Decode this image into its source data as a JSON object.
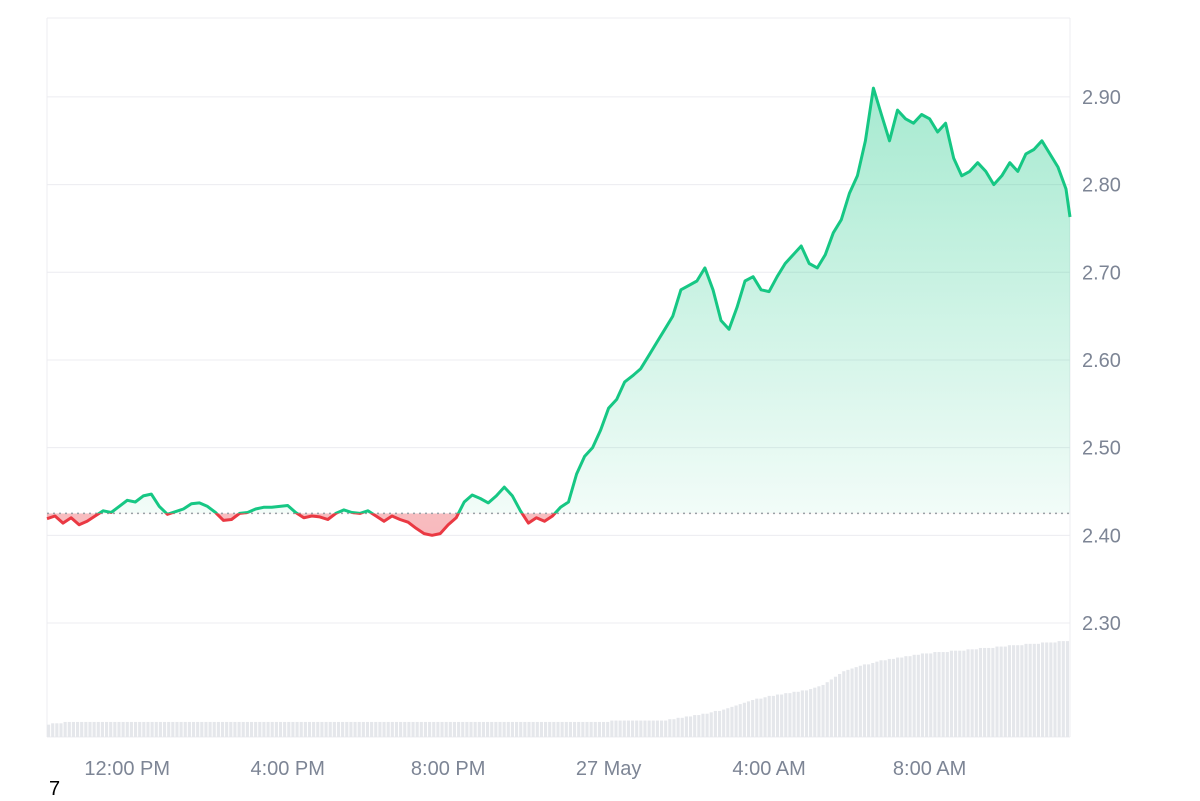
{
  "chart_data": {
    "type": "area",
    "baseline": 2.425,
    "y_ticks": [
      2.3,
      2.4,
      2.5,
      2.6,
      2.7,
      2.8,
      2.9
    ],
    "y_tick_labels": [
      "2.30",
      "2.40",
      "2.50",
      "2.60",
      "2.70",
      "2.80",
      "2.90"
    ],
    "ylim": [
      2.17,
      2.99
    ],
    "x_tick_labels": [
      "12:00 PM",
      "4:00 PM",
      "8:00 PM",
      "27 May",
      "4:00 AM",
      "8:00 AM"
    ],
    "x_tick_times": [
      2,
      6,
      10,
      14,
      18,
      22
    ],
    "xlim": [
      0,
      25.5
    ],
    "grid": true,
    "colors": {
      "up": "#16c784",
      "down": "#ea3943",
      "grid": "#ececf0",
      "volume": "#e5e7eb",
      "baseline": "#9aa0a6"
    },
    "series": [
      {
        "values": [
          [
            0.0,
            2.419
          ],
          [
            0.2,
            2.422
          ],
          [
            0.4,
            2.414
          ],
          [
            0.6,
            2.42
          ],
          [
            0.8,
            2.412
          ],
          [
            1.0,
            2.416
          ],
          [
            1.2,
            2.422
          ],
          [
            1.4,
            2.428
          ],
          [
            1.6,
            2.426
          ],
          [
            1.8,
            2.433
          ],
          [
            2.0,
            2.44
          ],
          [
            2.2,
            2.438
          ],
          [
            2.4,
            2.445
          ],
          [
            2.6,
            2.447
          ],
          [
            2.8,
            2.433
          ],
          [
            3.0,
            2.424
          ],
          [
            3.2,
            2.427
          ],
          [
            3.4,
            2.43
          ],
          [
            3.6,
            2.436
          ],
          [
            3.8,
            2.437
          ],
          [
            4.0,
            2.433
          ],
          [
            4.2,
            2.426
          ],
          [
            4.4,
            2.417
          ],
          [
            4.6,
            2.418
          ],
          [
            4.8,
            2.425
          ],
          [
            5.0,
            2.426
          ],
          [
            5.2,
            2.43
          ],
          [
            5.4,
            2.432
          ],
          [
            5.6,
            2.432
          ],
          [
            5.8,
            2.433
          ],
          [
            6.0,
            2.434
          ],
          [
            6.2,
            2.426
          ],
          [
            6.4,
            2.42
          ],
          [
            6.6,
            2.422
          ],
          [
            6.8,
            2.421
          ],
          [
            7.0,
            2.418
          ],
          [
            7.2,
            2.425
          ],
          [
            7.4,
            2.429
          ],
          [
            7.6,
            2.426
          ],
          [
            7.8,
            2.425
          ],
          [
            8.0,
            2.428
          ],
          [
            8.2,
            2.422
          ],
          [
            8.4,
            2.416
          ],
          [
            8.6,
            2.422
          ],
          [
            8.8,
            2.418
          ],
          [
            9.0,
            2.415
          ],
          [
            9.2,
            2.408
          ],
          [
            9.4,
            2.402
          ],
          [
            9.6,
            2.4
          ],
          [
            9.8,
            2.402
          ],
          [
            10.0,
            2.412
          ],
          [
            10.2,
            2.42
          ],
          [
            10.4,
            2.438
          ],
          [
            10.6,
            2.446
          ],
          [
            10.8,
            2.442
          ],
          [
            11.0,
            2.437
          ],
          [
            11.2,
            2.445
          ],
          [
            11.4,
            2.455
          ],
          [
            11.6,
            2.445
          ],
          [
            11.8,
            2.428
          ],
          [
            12.0,
            2.414
          ],
          [
            12.2,
            2.42
          ],
          [
            12.4,
            2.416
          ],
          [
            12.6,
            2.422
          ],
          [
            12.8,
            2.432
          ],
          [
            13.0,
            2.438
          ],
          [
            13.2,
            2.47
          ],
          [
            13.4,
            2.49
          ],
          [
            13.6,
            2.5
          ],
          [
            13.8,
            2.52
          ],
          [
            14.0,
            2.545
          ],
          [
            14.2,
            2.555
          ],
          [
            14.4,
            2.575
          ],
          [
            14.6,
            2.582
          ],
          [
            14.8,
            2.59
          ],
          [
            15.0,
            2.605
          ],
          [
            15.2,
            2.62
          ],
          [
            15.4,
            2.635
          ],
          [
            15.6,
            2.65
          ],
          [
            15.8,
            2.68
          ],
          [
            16.0,
            2.685
          ],
          [
            16.2,
            2.69
          ],
          [
            16.4,
            2.705
          ],
          [
            16.6,
            2.68
          ],
          [
            16.8,
            2.645
          ],
          [
            17.0,
            2.635
          ],
          [
            17.2,
            2.66
          ],
          [
            17.4,
            2.69
          ],
          [
            17.6,
            2.695
          ],
          [
            17.8,
            2.68
          ],
          [
            18.0,
            2.678
          ],
          [
            18.2,
            2.695
          ],
          [
            18.4,
            2.71
          ],
          [
            18.6,
            2.72
          ],
          [
            18.8,
            2.73
          ],
          [
            19.0,
            2.71
          ],
          [
            19.2,
            2.705
          ],
          [
            19.4,
            2.72
          ],
          [
            19.6,
            2.745
          ],
          [
            19.8,
            2.76
          ],
          [
            20.0,
            2.79
          ],
          [
            20.2,
            2.81
          ],
          [
            20.4,
            2.85
          ],
          [
            20.6,
            2.91
          ],
          [
            20.8,
            2.88
          ],
          [
            21.0,
            2.85
          ],
          [
            21.2,
            2.885
          ],
          [
            21.4,
            2.875
          ],
          [
            21.6,
            2.87
          ],
          [
            21.8,
            2.88
          ],
          [
            22.0,
            2.875
          ],
          [
            22.2,
            2.86
          ],
          [
            22.4,
            2.87
          ],
          [
            22.6,
            2.83
          ],
          [
            22.8,
            2.81
          ],
          [
            23.0,
            2.815
          ],
          [
            23.2,
            2.825
          ],
          [
            23.4,
            2.815
          ],
          [
            23.6,
            2.8
          ],
          [
            23.8,
            2.81
          ],
          [
            24.0,
            2.825
          ],
          [
            24.2,
            2.815
          ],
          [
            24.4,
            2.835
          ],
          [
            24.6,
            2.84
          ],
          [
            24.8,
            2.85
          ],
          [
            25.0,
            2.835
          ],
          [
            25.2,
            2.82
          ],
          [
            25.4,
            2.795
          ],
          [
            25.5,
            2.763
          ]
        ]
      }
    ],
    "volume": [
      0.09,
      0.1,
      0.1,
      0.1,
      0.11,
      0.11,
      0.11,
      0.11,
      0.11,
      0.11,
      0.11,
      0.11,
      0.11,
      0.11,
      0.11,
      0.11,
      0.11,
      0.11,
      0.11,
      0.11,
      0.11,
      0.11,
      0.11,
      0.11,
      0.11,
      0.11,
      0.11,
      0.11,
      0.11,
      0.11,
      0.11,
      0.11,
      0.11,
      0.11,
      0.11,
      0.11,
      0.11,
      0.11,
      0.11,
      0.11,
      0.11,
      0.11,
      0.11,
      0.11,
      0.11,
      0.11,
      0.11,
      0.11,
      0.11,
      0.11,
      0.11,
      0.11,
      0.11,
      0.11,
      0.11,
      0.11,
      0.11,
      0.11,
      0.11,
      0.11,
      0.11,
      0.11,
      0.11,
      0.11,
      0.11,
      0.11,
      0.11,
      0.11,
      0.11,
      0.11,
      0.11,
      0.11,
      0.11,
      0.11,
      0.11,
      0.11,
      0.11,
      0.11,
      0.11,
      0.11,
      0.11,
      0.11,
      0.11,
      0.11,
      0.11,
      0.11,
      0.11,
      0.11,
      0.11,
      0.11,
      0.11,
      0.11,
      0.11,
      0.11,
      0.11,
      0.11,
      0.11,
      0.11,
      0.11,
      0.11,
      0.11,
      0.11,
      0.11,
      0.11,
      0.11,
      0.11,
      0.11,
      0.11,
      0.11,
      0.11,
      0.11,
      0.11,
      0.11,
      0.11,
      0.11,
      0.11,
      0.11,
      0.11,
      0.11,
      0.11,
      0.11,
      0.11,
      0.11,
      0.11,
      0.11,
      0.11,
      0.11,
      0.11,
      0.11,
      0.11,
      0.11,
      0.11,
      0.11,
      0.11,
      0.11,
      0.11,
      0.12,
      0.12,
      0.12,
      0.12,
      0.12,
      0.12,
      0.12,
      0.12,
      0.12,
      0.12,
      0.12,
      0.12,
      0.12,
      0.12,
      0.13,
      0.13,
      0.14,
      0.14,
      0.15,
      0.15,
      0.16,
      0.16,
      0.17,
      0.17,
      0.18,
      0.19,
      0.19,
      0.2,
      0.21,
      0.22,
      0.23,
      0.24,
      0.25,
      0.26,
      0.27,
      0.28,
      0.28,
      0.29,
      0.3,
      0.3,
      0.31,
      0.31,
      0.32,
      0.32,
      0.33,
      0.33,
      0.34,
      0.34,
      0.35,
      0.36,
      0.37,
      0.38,
      0.4,
      0.42,
      0.44,
      0.46,
      0.48,
      0.49,
      0.5,
      0.51,
      0.52,
      0.53,
      0.53,
      0.54,
      0.55,
      0.56,
      0.56,
      0.57,
      0.57,
      0.58,
      0.58,
      0.59,
      0.59,
      0.6,
      0.6,
      0.61,
      0.61,
      0.61,
      0.62,
      0.62,
      0.62,
      0.62,
      0.63,
      0.63,
      0.63,
      0.63,
      0.64,
      0.64,
      0.64,
      0.65,
      0.65,
      0.65,
      0.65,
      0.66,
      0.66,
      0.66,
      0.67,
      0.67,
      0.67,
      0.67,
      0.68,
      0.68,
      0.68,
      0.68,
      0.69,
      0.69,
      0.69,
      0.69,
      0.7,
      0.7,
      0.7
    ]
  },
  "corner_label": "7"
}
